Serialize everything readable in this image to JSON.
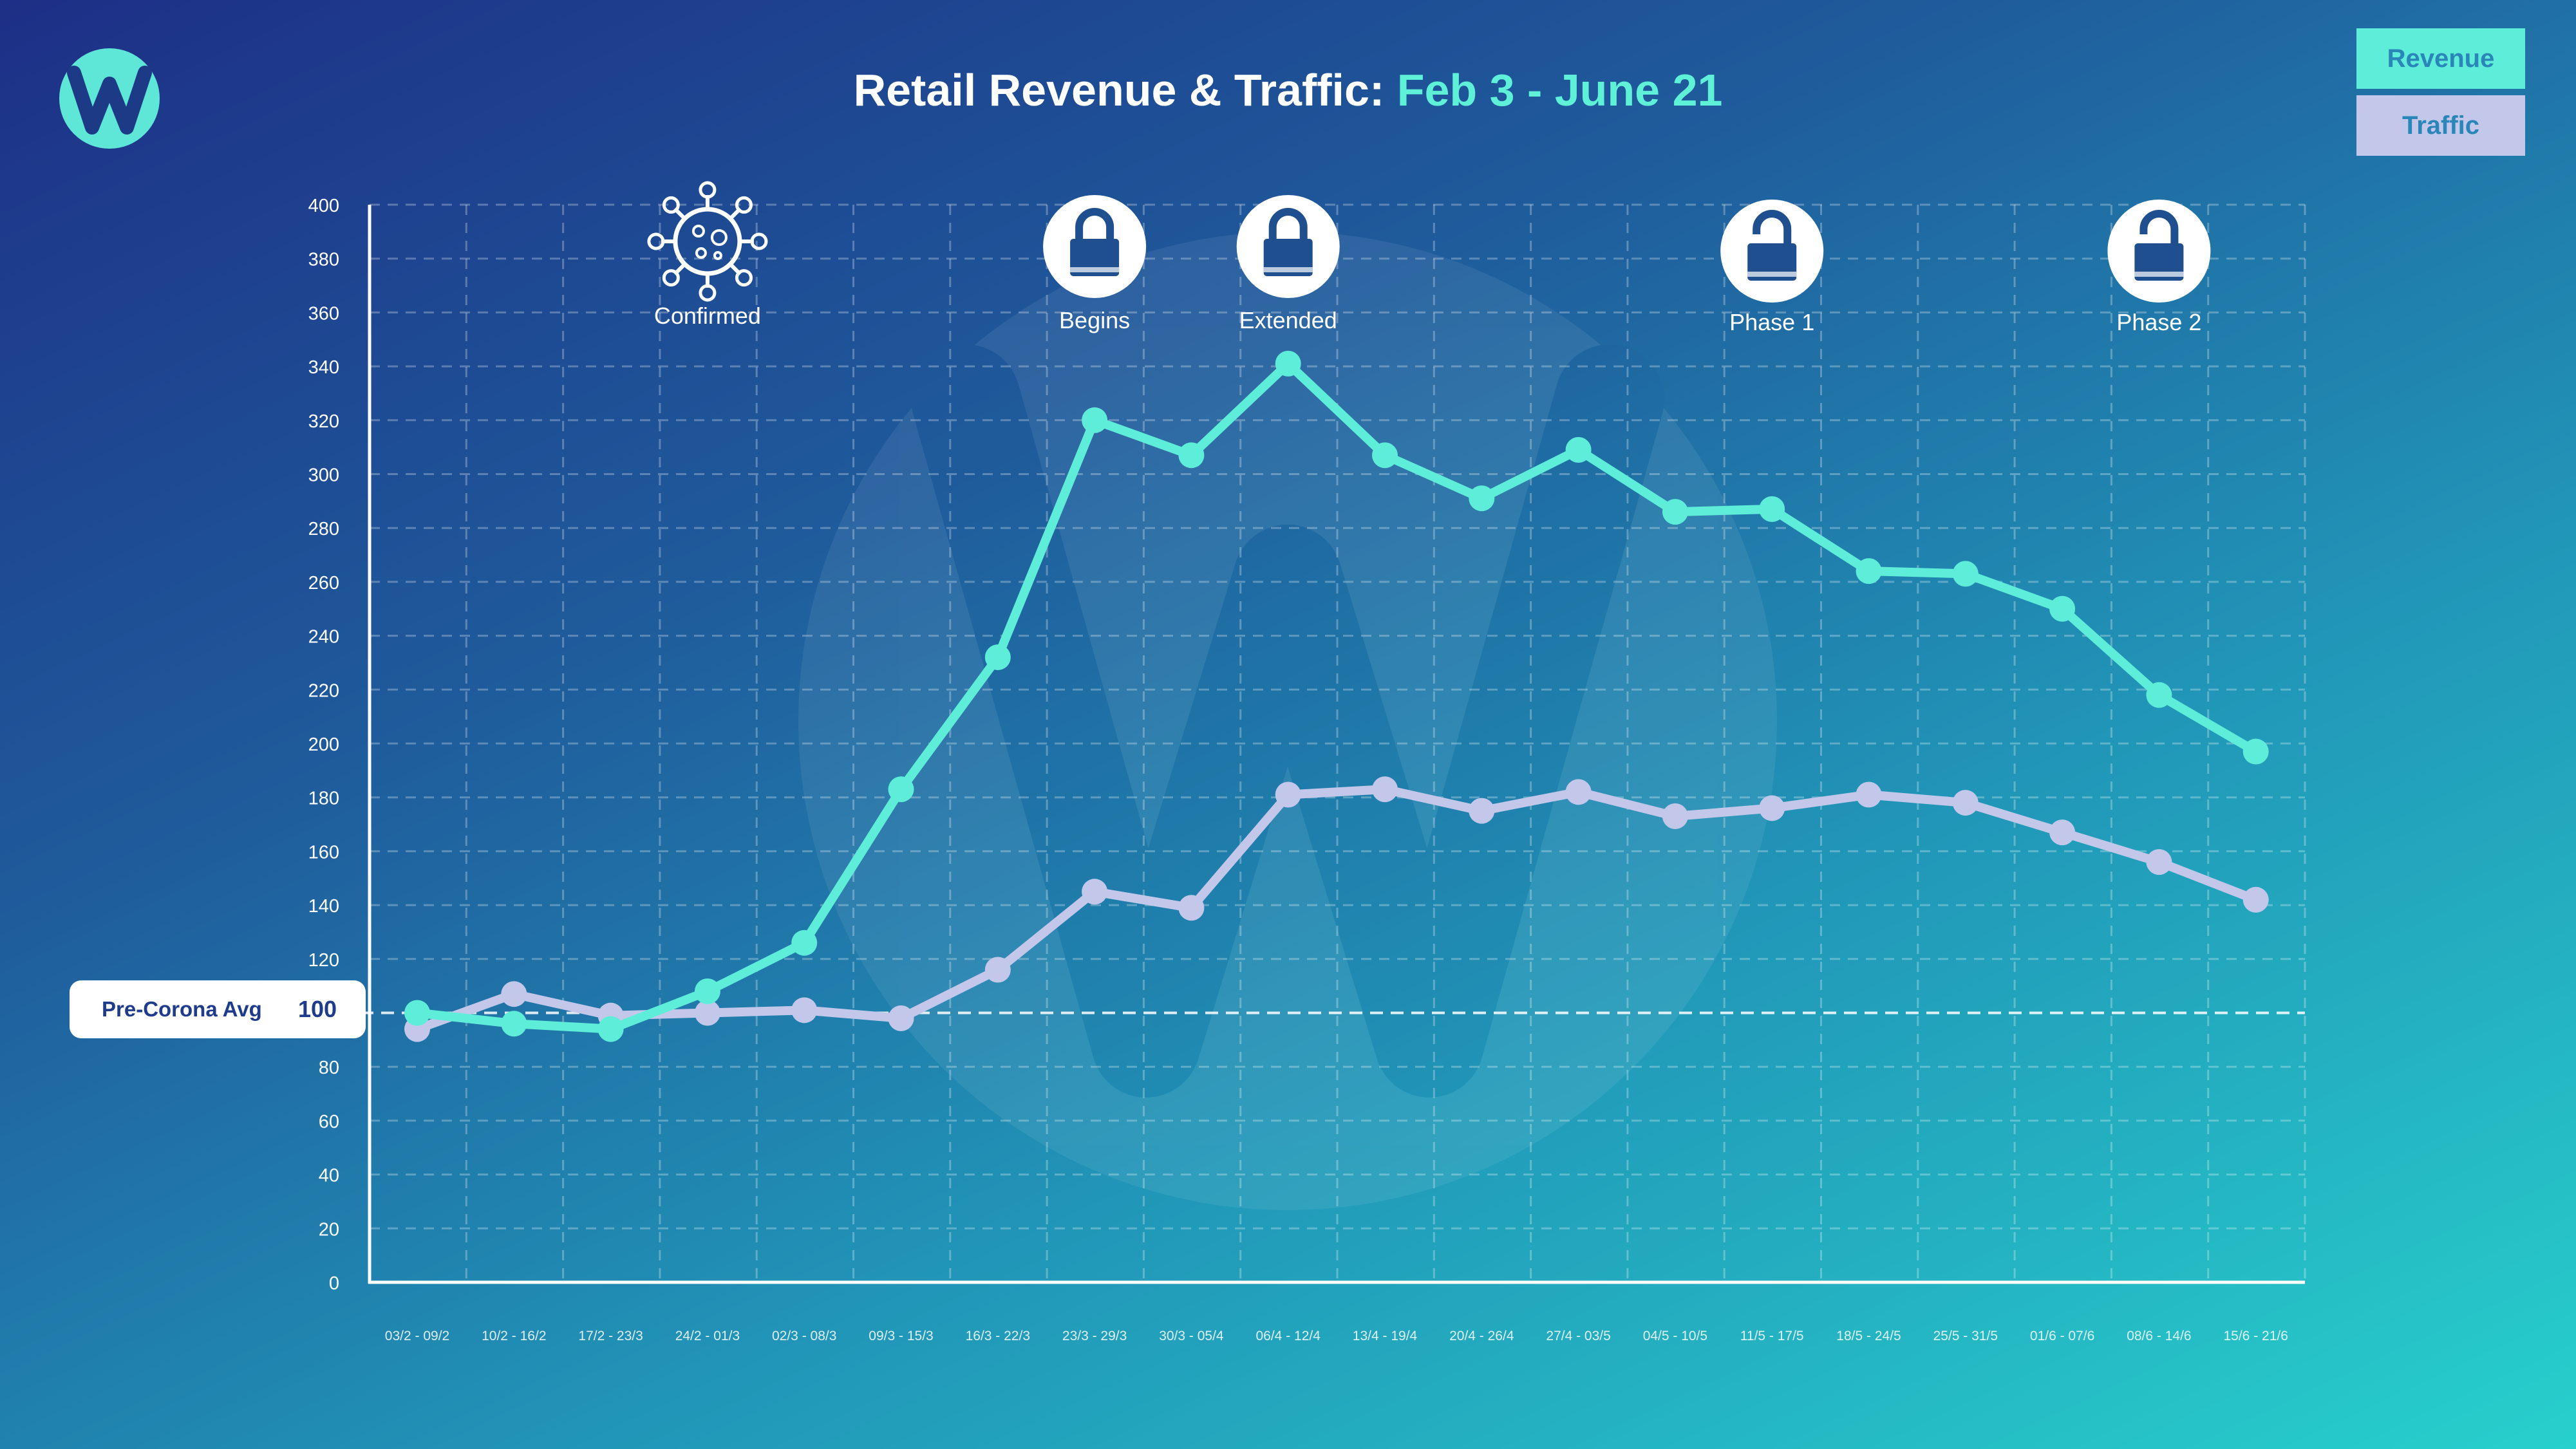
{
  "title": {
    "main": "Retail Revenue & Traffic:",
    "highlight": "Feb 3 - June 21"
  },
  "legend": {
    "revenue": "Revenue",
    "traffic": "Traffic"
  },
  "baseline": {
    "label": "Pre-Corona Avg",
    "value": "100"
  },
  "events": [
    {
      "label": "Confirmed",
      "icon": "virus-icon"
    },
    {
      "label": "Begins",
      "icon": "lock-icon"
    },
    {
      "label": "Extended",
      "icon": "lock-icon"
    },
    {
      "label": "Phase 1",
      "icon": "unlock-icon"
    },
    {
      "label": "Phase 2",
      "icon": "unlock-icon"
    }
  ],
  "colors": {
    "revenue": "#5eedd8",
    "traffic": "#c3c8ea",
    "accent": "#5ff0d8"
  },
  "chart_data": {
    "type": "line",
    "title": "Retail Revenue & Traffic: Feb 3 - June 21",
    "categories": [
      "03/2 - 09/2",
      "10/2 - 16/2",
      "17/2 - 23/3",
      "24/2 - 01/3",
      "02/3 - 08/3",
      "09/3 - 15/3",
      "16/3 - 22/3",
      "23/3 - 29/3",
      "30/3 - 05/4",
      "06/4 - 12/4",
      "13/4 - 19/4",
      "20/4 - 26/4",
      "27/4 - 03/5",
      "04/5 - 10/5",
      "11/5 - 17/5",
      "18/5 - 24/5",
      "25/5 - 31/5",
      "01/6 - 07/6",
      "08/6 - 14/6",
      "15/6 - 21/6"
    ],
    "series": [
      {
        "name": "Revenue",
        "values": [
          100,
          96,
          94,
          108,
          126,
          183,
          232,
          320,
          307,
          341,
          307,
          291,
          309,
          286,
          287,
          264,
          263,
          250,
          218,
          197
        ]
      },
      {
        "name": "Traffic",
        "values": [
          94,
          107,
          99,
          100,
          101,
          98,
          116,
          145,
          139,
          181,
          183,
          175,
          182,
          173,
          176,
          181,
          178,
          167,
          156,
          142
        ]
      }
    ],
    "yticks": [
      0,
      20,
      40,
      60,
      80,
      120,
      140,
      160,
      180,
      200,
      220,
      240,
      260,
      280,
      300,
      320,
      340,
      360,
      380,
      400
    ],
    "ylim": [
      0,
      400
    ],
    "grid": true,
    "reference_line": 100,
    "event_weeks": [
      "24/2 - 01/3",
      "23/3 - 29/3",
      "06/4 - 12/4",
      "11/5 - 17/5",
      "08/6 - 14/6"
    ]
  }
}
